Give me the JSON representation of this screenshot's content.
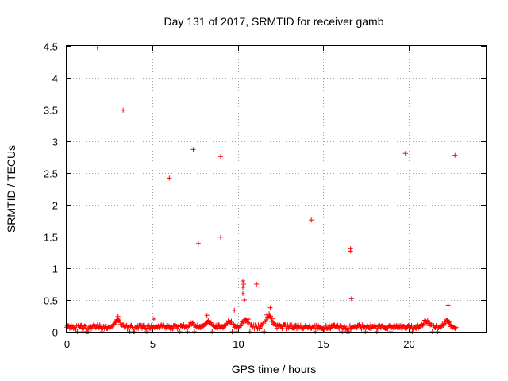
{
  "chart_data": {
    "type": "scatter",
    "title": "Day 131 of 2017, SRMTID for receiver gamb",
    "xlabel": "GPS time / hours",
    "ylabel": "SRMTID / TECUs",
    "xlim": [
      0,
      24.5
    ],
    "ylim": [
      0,
      4.5
    ],
    "xticks": [
      0,
      5,
      10,
      15,
      20
    ],
    "yticks": [
      0,
      0.5,
      1,
      1.5,
      2,
      2.5,
      3,
      3.5,
      4,
      4.5
    ],
    "xtick_labels": [
      "0",
      "5",
      "10",
      "15",
      "20"
    ],
    "ytick_labels": [
      "0",
      "0.5",
      "1",
      "1.5",
      "2",
      "2.5",
      "3",
      "3.5",
      "4",
      "4.5"
    ],
    "grid": true,
    "marker": "+",
    "color": "#ff0000",
    "outliers": [
      {
        "x": 1.8,
        "y": 4.47
      },
      {
        "x": 3.3,
        "y": 3.49
      },
      {
        "x": 6.0,
        "y": 2.42
      },
      {
        "x": 7.4,
        "y": 2.87
      },
      {
        "x": 7.7,
        "y": 1.39
      },
      {
        "x": 9.0,
        "y": 2.76
      },
      {
        "x": 9.0,
        "y": 1.49
      },
      {
        "x": 10.3,
        "y": 0.8
      },
      {
        "x": 10.35,
        "y": 0.75
      },
      {
        "x": 10.3,
        "y": 0.7
      },
      {
        "x": 10.3,
        "y": 0.6
      },
      {
        "x": 10.4,
        "y": 0.5
      },
      {
        "x": 9.8,
        "y": 0.34
      },
      {
        "x": 11.1,
        "y": 0.75
      },
      {
        "x": 14.3,
        "y": 1.76
      },
      {
        "x": 16.6,
        "y": 1.31
      },
      {
        "x": 16.6,
        "y": 1.27
      },
      {
        "x": 16.65,
        "y": 0.52
      },
      {
        "x": 19.8,
        "y": 2.81
      },
      {
        "x": 22.3,
        "y": 0.42
      },
      {
        "x": 22.7,
        "y": 2.78
      },
      {
        "x": 5.1,
        "y": 0.2
      },
      {
        "x": 8.2,
        "y": 0.26
      },
      {
        "x": 11.9,
        "y": 0.38
      },
      {
        "x": 3.0,
        "y": 0.24
      }
    ],
    "baseline": {
      "x_range": [
        0,
        22.8
      ],
      "typical_y": 0.08,
      "bumps": [
        {
          "x": 3.0,
          "y": 0.2
        },
        {
          "x": 7.3,
          "y": 0.15
        },
        {
          "x": 8.3,
          "y": 0.18
        },
        {
          "x": 9.5,
          "y": 0.2
        },
        {
          "x": 10.5,
          "y": 0.24
        },
        {
          "x": 11.8,
          "y": 0.3
        },
        {
          "x": 21.0,
          "y": 0.2
        },
        {
          "x": 22.2,
          "y": 0.2
        }
      ]
    }
  }
}
